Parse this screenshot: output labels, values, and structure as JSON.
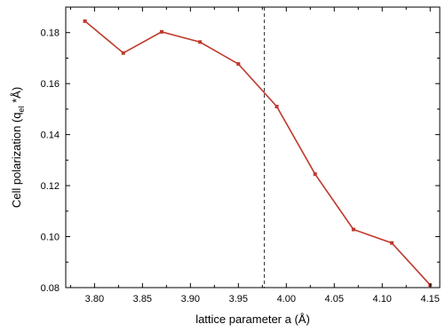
{
  "chart_data": {
    "type": "line",
    "title": "",
    "xlabel": "lattice parameter a  (Å)",
    "ylabel_main": "Cell polarization (q",
    "ylabel_sub": "el",
    "ylabel_tail": " *Å)",
    "xlim": [
      3.77,
      4.16
    ],
    "ylim": [
      0.08,
      0.19
    ],
    "x_ticks": [
      3.8,
      3.85,
      3.9,
      3.95,
      4.0,
      4.05,
      4.1,
      4.15
    ],
    "x_tick_labels": [
      "3.80",
      "3.85",
      "3.90",
      "3.95",
      "4.00",
      "4.05",
      "4.10",
      "4.15"
    ],
    "y_ticks": [
      0.08,
      0.1,
      0.12,
      0.14,
      0.16,
      0.18
    ],
    "y_tick_labels": [
      "0.08",
      "0.10",
      "0.12",
      "0.14",
      "0.16",
      "0.18"
    ],
    "x_minor_step": 0.025,
    "y_minor_step": 0.01,
    "reference_line_x": 3.977,
    "series": [
      {
        "color": "#c0392b",
        "x": [
          3.79,
          3.83,
          3.87,
          3.91,
          3.95,
          3.99,
          4.03,
          4.07,
          4.11,
          4.15
        ],
        "y": [
          0.1845,
          0.172,
          0.1803,
          0.1763,
          0.1677,
          0.151,
          0.1245,
          0.1028,
          0.0975,
          0.081
        ]
      }
    ],
    "grid": false
  }
}
